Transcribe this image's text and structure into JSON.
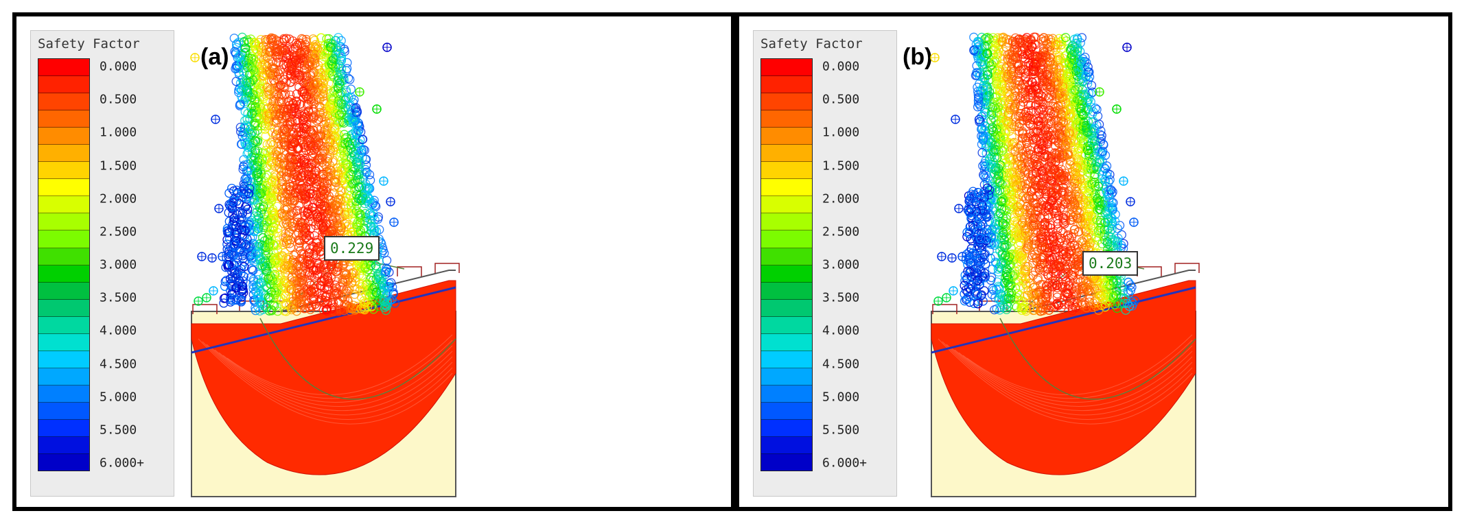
{
  "legend": {
    "title": "Safety Factor",
    "ticks": [
      "0.000",
      "0.500",
      "1.000",
      "1.500",
      "2.000",
      "2.500",
      "3.000",
      "3.500",
      "4.000",
      "4.500",
      "5.000",
      "5.500",
      "6.000+"
    ],
    "colors": [
      "#ff0000",
      "#ff2200",
      "#ff4400",
      "#ff6600",
      "#ff8c00",
      "#ffb000",
      "#ffd400",
      "#ffff00",
      "#d8ff00",
      "#a8ff00",
      "#7cfc00",
      "#40e000",
      "#00d000",
      "#00c040",
      "#00c870",
      "#00d8a0",
      "#00e0d0",
      "#00ccff",
      "#00a8ff",
      "#0080ff",
      "#0058ff",
      "#0030ff",
      "#0010e0",
      "#0000c8"
    ]
  },
  "panels": [
    {
      "label": "(a)",
      "min_fs": "0.229"
    },
    {
      "label": "(b)",
      "min_fs": "0.203"
    }
  ],
  "colors": {
    "slope_fill": "#fdf8c9",
    "slip_fill": "#ff2a00",
    "outline": "#555555",
    "water_line": "#2233bb",
    "highlight": "#5a7d3a"
  }
}
